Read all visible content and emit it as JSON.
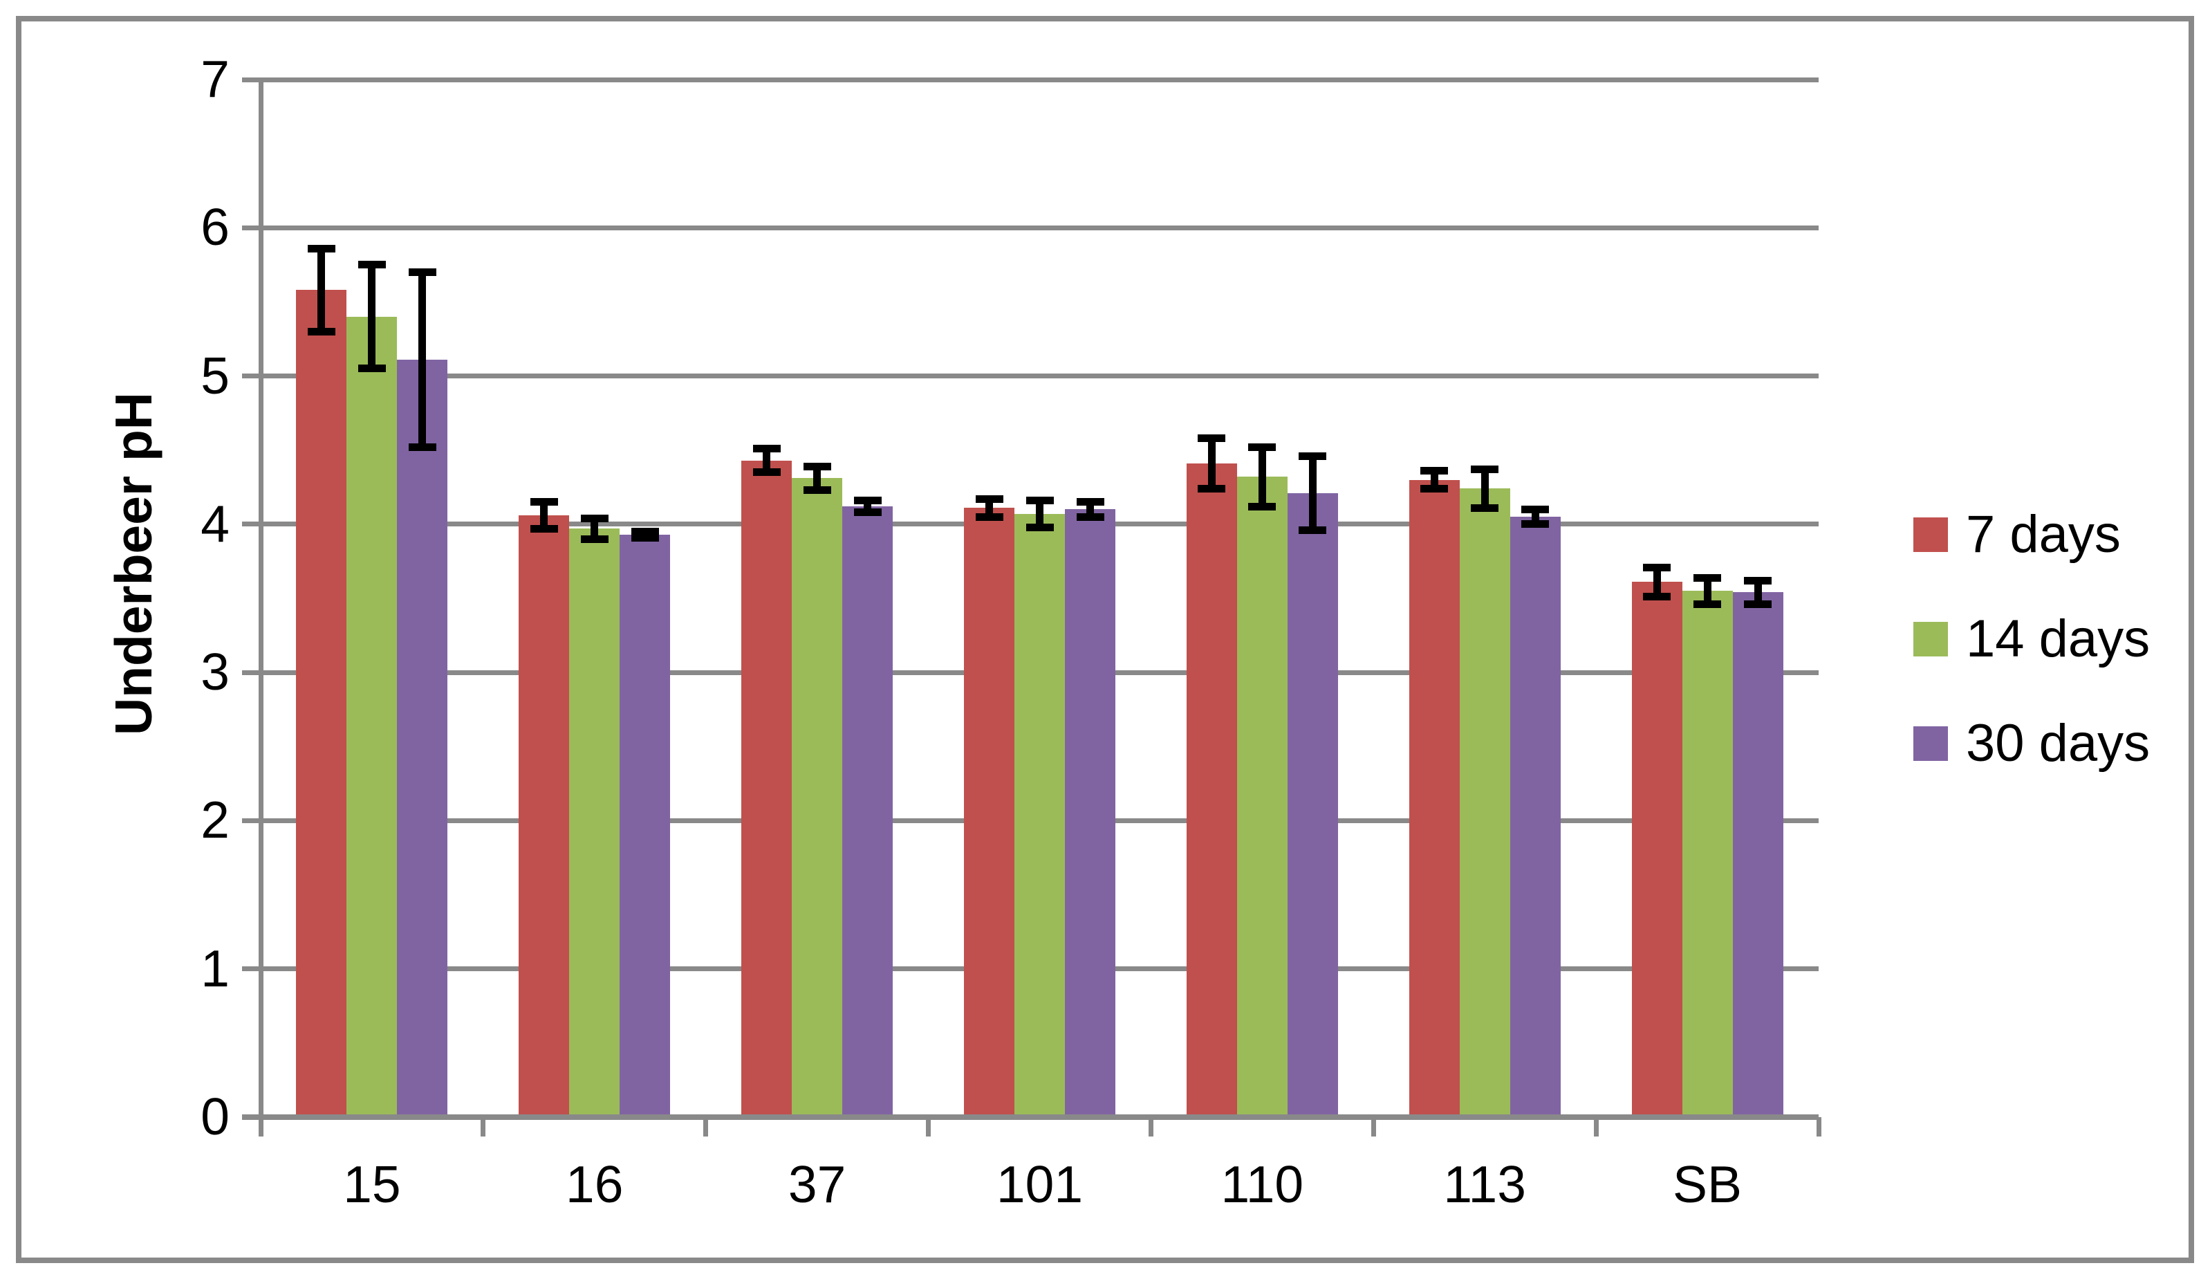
{
  "figure": {
    "background_color": "#FFFFFF",
    "border_color": "#898989"
  },
  "chart_data": {
    "type": "bar",
    "title": "",
    "xlabel": "",
    "ylabel": "Underbeer pH",
    "categories": [
      "15",
      "16",
      "37",
      "101",
      "110",
      "113",
      "SB"
    ],
    "series": [
      {
        "name": "7 days",
        "color": "#C0504D",
        "values": [
          5.58,
          4.06,
          4.43,
          4.11,
          4.41,
          4.3,
          3.61
        ],
        "errors": [
          0.28,
          0.09,
          0.08,
          0.06,
          0.17,
          0.06,
          0.1
        ]
      },
      {
        "name": "14 days",
        "color": "#9BBB59",
        "values": [
          5.4,
          3.97,
          4.31,
          4.07,
          4.32,
          4.24,
          3.55
        ],
        "errors": [
          0.35,
          0.07,
          0.08,
          0.09,
          0.2,
          0.13,
          0.09
        ]
      },
      {
        "name": "30 days",
        "color": "#8064A2",
        "values": [
          5.11,
          3.93,
          4.12,
          4.1,
          4.21,
          4.05,
          3.54
        ],
        "errors": [
          0.59,
          0.02,
          0.04,
          0.05,
          0.25,
          0.05,
          0.08
        ]
      }
    ],
    "ylim": [
      0,
      7
    ],
    "ytick_step": 1,
    "ytick_labels": [
      "0",
      "1",
      "2",
      "3",
      "4",
      "5",
      "6",
      "7"
    ],
    "grid": true,
    "gridline_color": "#898989",
    "error_bar_color": "#000000",
    "text_color": "#000000",
    "legend_position": "right"
  }
}
